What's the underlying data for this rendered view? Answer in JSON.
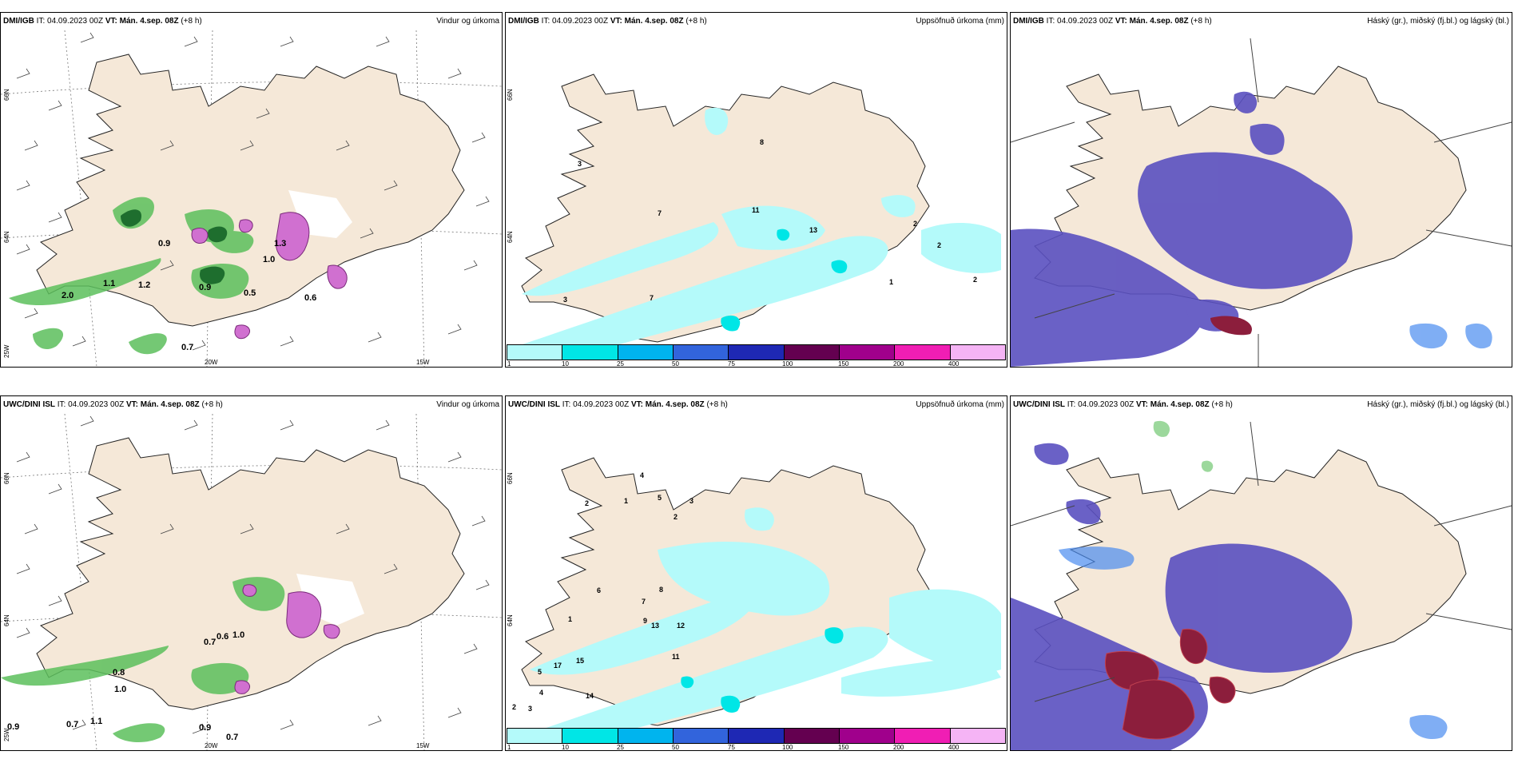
{
  "panels": {
    "p1": {
      "model": "DMI/IGB",
      "it_label": "IT:",
      "it_value": "04.09.2023 00Z",
      "vt_label": "VT:",
      "vt_value": "Mán. 4.sep. 08Z",
      "offset": "(+8 h)",
      "title": "Vindur og úrkoma"
    },
    "p2": {
      "model": "DMI/IGB",
      "it_label": "IT:",
      "it_value": "04.09.2023 00Z",
      "vt_label": "VT:",
      "vt_value": "Mán. 4.sep. 08Z",
      "offset": "(+8 h)",
      "title": "Uppsöfnuð úrkoma (mm)"
    },
    "p3": {
      "model": "DMI/IGB",
      "it_label": "IT:",
      "it_value": "04.09.2023 00Z",
      "vt_label": "VT:",
      "vt_value": "Mán. 4.sep. 08Z",
      "offset": "(+8 h)",
      "title": "Háský (gr.), miðský (fj.bl.) og lágský (bl.)"
    },
    "p4": {
      "model": "UWC/DINI ISL",
      "it_label": "IT:",
      "it_value": "04.09.2023 00Z",
      "vt_label": "VT:",
      "vt_value": "Mán. 4.sep. 08Z",
      "offset": "(+8 h)",
      "title": "Vindur og úrkoma"
    },
    "p5": {
      "model": "UWC/DINI ISL",
      "it_label": "IT:",
      "it_value": "04.09.2023 00Z",
      "vt_label": "VT:",
      "vt_value": "Mán. 4.sep. 08Z",
      "offset": "(+8 h)",
      "title": "Uppsöfnuð úrkoma (mm)"
    },
    "p6": {
      "model": "UWC/DINI ISL",
      "it_label": "IT:",
      "it_value": "04.09.2023 00Z",
      "vt_label": "VT:",
      "vt_value": "Mán. 4.sep. 08Z",
      "offset": "(+8 h)",
      "title": "Háský (gr.), miðský (fj.bl.) og lágský (bl.)"
    }
  },
  "axis_labels": {
    "lat66": "66N",
    "lat64": "64N",
    "lat25w": "25W",
    "lon20w": "20W",
    "lon15w": "15W"
  },
  "colorbar": {
    "labels": [
      "1",
      "10",
      "25",
      "50",
      "75",
      "100",
      "150",
      "200",
      "400"
    ],
    "colors": [
      "#b4fafa",
      "#00e6e6",
      "#00b4ee",
      "#3264dc",
      "#1e28b4",
      "#640050",
      "#a0008c",
      "#f01eb4",
      "#f5b4f5"
    ]
  },
  "wind_precip_labels_top": [
    "0.9",
    "1.1",
    "2.0",
    "1.2",
    "0.9",
    "0.5",
    "0.6",
    "0.7",
    "1.0",
    "1.3"
  ],
  "wind_precip_labels_bottom": [
    "0.9",
    "0.7",
    "1.1",
    "1.0",
    "0.9",
    "0.7",
    "0.6",
    "1.0",
    "0.7",
    "0.8"
  ],
  "accum_labels_top": [
    "3",
    "8",
    "7",
    "11",
    "13",
    "7",
    "3",
    "1",
    "2",
    "2",
    "2"
  ],
  "accum_labels_bottom": [
    "2",
    "1",
    "4",
    "5",
    "2",
    "3",
    "6",
    "7",
    "9",
    "8",
    "12",
    "11",
    "13",
    "17",
    "15",
    "14",
    "1",
    "2",
    "3",
    "4",
    "5"
  ],
  "colors": {
    "land": "#f5e8d8",
    "coast": "#222222",
    "sea": "#ffffff",
    "cloud_mid": "#5a50c0",
    "cloud_low": "#4a8cf0",
    "cloud_high": "#8c1e3c"
  }
}
